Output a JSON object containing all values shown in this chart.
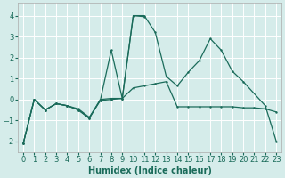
{
  "title": "",
  "xlabel": "Humidex (Indice chaleur)",
  "ylabel": "",
  "background_color": "#d5ecea",
  "grid_color": "#ffffff",
  "line_color": "#1a6b5a",
  "ylim": [
    -2.5,
    4.6
  ],
  "xlim": [
    -0.5,
    23.5
  ],
  "yticks": [
    -2,
    -1,
    0,
    1,
    2,
    3,
    4
  ],
  "xticks": [
    0,
    1,
    2,
    3,
    4,
    5,
    6,
    7,
    8,
    9,
    10,
    11,
    12,
    13,
    14,
    15,
    16,
    17,
    18,
    19,
    20,
    21,
    22,
    23
  ],
  "line1_x": [
    0,
    1,
    2,
    3,
    4,
    5,
    6,
    7,
    8,
    9,
    10,
    11,
    12,
    13,
    14,
    15,
    16,
    17,
    18,
    19,
    20,
    22,
    23
  ],
  "line1_y": [
    -2.1,
    0.0,
    -0.5,
    -0.2,
    -0.3,
    -0.5,
    -0.9,
    -0.05,
    2.35,
    0.05,
    4.0,
    4.0,
    3.2,
    1.1,
    0.65,
    1.3,
    1.85,
    2.9,
    2.35,
    1.35,
    0.85,
    -0.3,
    -2.0
  ],
  "line2_x": [
    0,
    1,
    2,
    3,
    4,
    5,
    6,
    7,
    8,
    9,
    10,
    11
  ],
  "line2_y": [
    -2.1,
    0.0,
    -0.5,
    -0.2,
    -0.3,
    -0.5,
    -0.9,
    0.0,
    0.05,
    0.05,
    4.0,
    3.95
  ],
  "line3_x": [
    0,
    1,
    2,
    3,
    4,
    5,
    6,
    7,
    8,
    9,
    10,
    11,
    12,
    13,
    14,
    15,
    16,
    17,
    18,
    19,
    20,
    21,
    22,
    23
  ],
  "line3_y": [
    -2.1,
    0.0,
    -0.5,
    -0.2,
    -0.3,
    -0.45,
    -0.85,
    -0.05,
    0.0,
    0.05,
    0.55,
    0.65,
    0.75,
    0.85,
    -0.35,
    -0.35,
    -0.35,
    -0.35,
    -0.35,
    -0.35,
    -0.4,
    -0.4,
    -0.45,
    -0.6
  ],
  "tick_fontsize": 6,
  "xlabel_fontsize": 7
}
